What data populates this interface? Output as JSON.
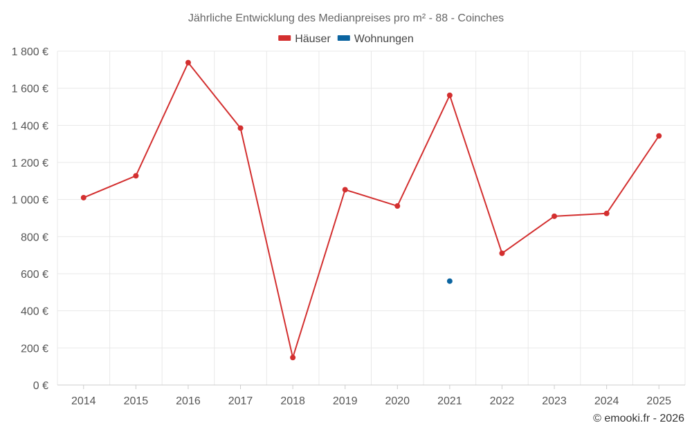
{
  "chart_data": {
    "type": "line",
    "title": "Jährliche Entwicklung des Medianpreises pro m² - 88 - Coinches",
    "categories": [
      "2014",
      "2015",
      "2016",
      "2017",
      "2018",
      "2019",
      "2020",
      "2021",
      "2022",
      "2023",
      "2024",
      "2025"
    ],
    "series": [
      {
        "name": "Häuser",
        "color": "#d32f2f",
        "values": [
          1010,
          1128,
          1738,
          1385,
          148,
          1053,
          965,
          1562,
          710,
          910,
          925,
          1343
        ]
      },
      {
        "name": "Wohnungen",
        "color": "#0b64a0",
        "values": [
          null,
          null,
          null,
          null,
          null,
          null,
          null,
          560,
          null,
          null,
          null,
          null
        ]
      }
    ],
    "y_ticks": [
      0,
      200,
      400,
      600,
      800,
      1000,
      1200,
      1400,
      1600,
      1800
    ],
    "y_tick_labels": [
      "0 €",
      "200 €",
      "400 €",
      "600 €",
      "800 €",
      "1 000 €",
      "1 200 €",
      "1 400 €",
      "1 600 €",
      "1 800 €"
    ],
    "ylim": [
      0,
      1800
    ],
    "xlabel": "",
    "ylabel": "",
    "legend_position": "top-center",
    "grid": true
  },
  "credit": "© emooki.fr - 2026"
}
